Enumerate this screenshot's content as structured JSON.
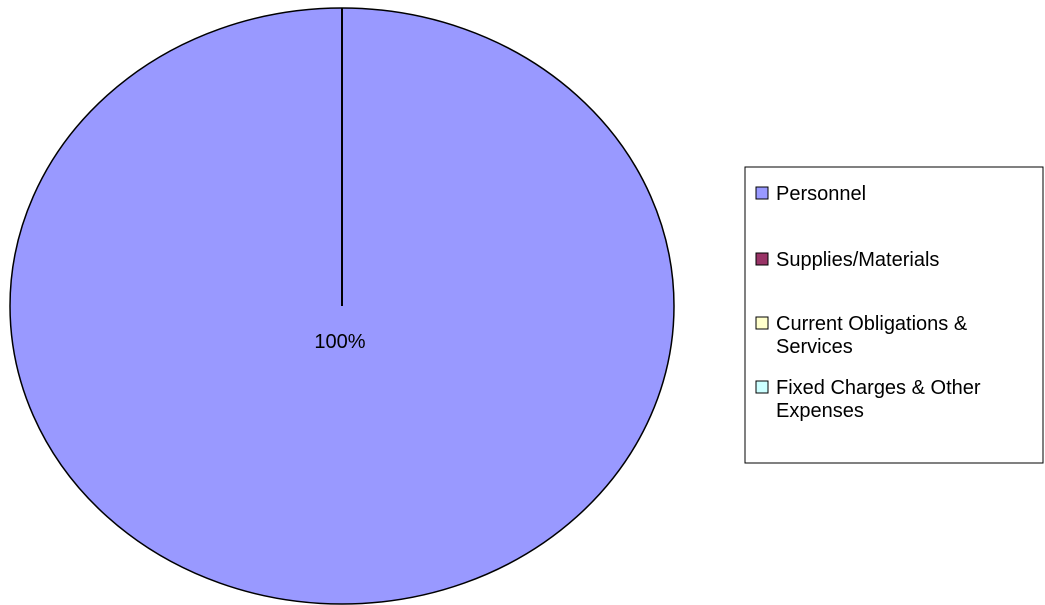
{
  "chart_data": {
    "type": "pie",
    "title": "",
    "categories": [
      "Personnel",
      "Supplies/Materials",
      "Current Obligations & Services",
      "Fixed Charges & Other Expenses"
    ],
    "values": [
      100,
      0,
      0,
      0
    ],
    "data_labels": [
      "100%"
    ],
    "colors": [
      "#9999ff",
      "#993366",
      "#ffffcc",
      "#ccffff"
    ],
    "legend": {
      "position": "right",
      "items": [
        {
          "lines": [
            "Personnel"
          ],
          "color": "#9999ff"
        },
        {
          "lines": [
            "Supplies/Materials"
          ],
          "color": "#993366"
        },
        {
          "lines": [
            "Current Obligations &",
            "Services"
          ],
          "color": "#ffffcc"
        },
        {
          "lines": [
            "Fixed Charges & Other",
            "Expenses"
          ],
          "color": "#ccffff"
        }
      ]
    }
  }
}
